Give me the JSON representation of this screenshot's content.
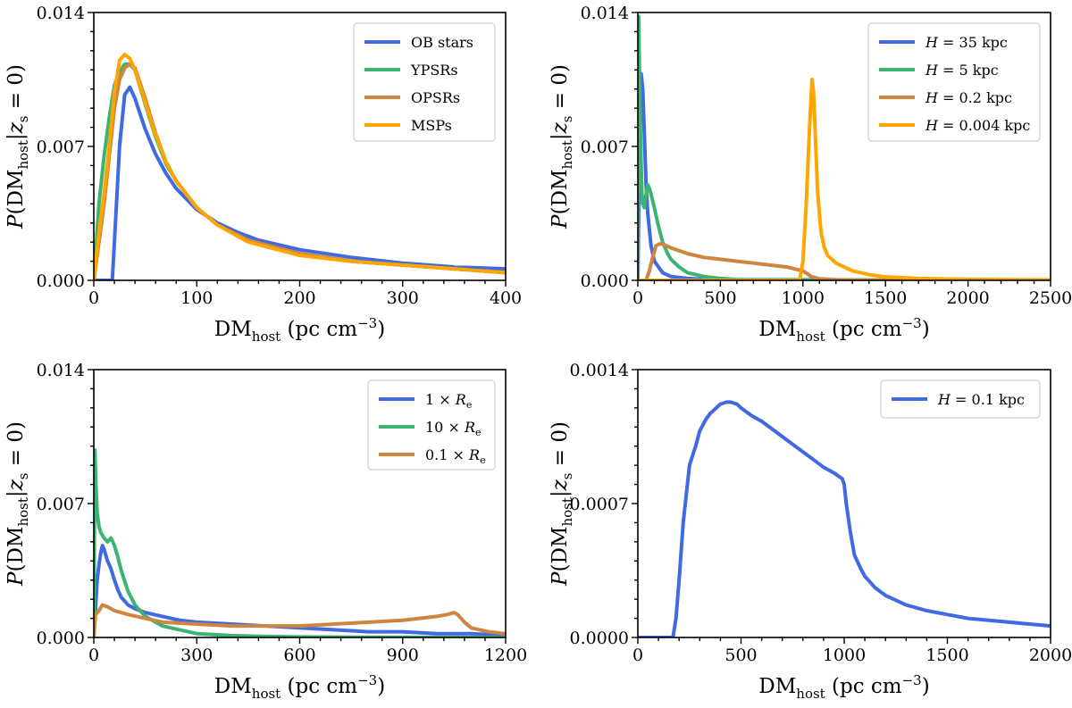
{
  "figure_xlabel": {
    "base": "DM",
    "sub": "host",
    "unit": " (pc cm",
    "exp": "−3",
    "close": ")"
  },
  "figure_ylabel": {
    "p": "P",
    "open": "(DM",
    "sub": "host",
    "bar": "|z",
    "zsub": "s",
    "tail": " = 0)"
  },
  "colors": {
    "blue": "#4169e1",
    "green": "#3cb371",
    "brown": "#cd853f",
    "orange": "#ffa500"
  },
  "chart_data": [
    {
      "type": "line",
      "panel": "top-left",
      "xlim": [
        0,
        400
      ],
      "ylim": [
        0,
        0.014
      ],
      "xticks": [
        0,
        100,
        200,
        300,
        400
      ],
      "xtick_labels": [
        "0",
        "100",
        "200",
        "300",
        "400"
      ],
      "yticks": [
        0,
        0.007,
        0.014
      ],
      "ytick_labels": [
        "0.000",
        "0.007",
        "0.014"
      ],
      "legend_position": "top-right",
      "series": [
        {
          "name": "OB stars",
          "color": "#4169e1",
          "legend_label": [
            "OB stars"
          ],
          "x": [
            0,
            18,
            20,
            25,
            30,
            35,
            40,
            50,
            60,
            70,
            80,
            100,
            120,
            140,
            160,
            200,
            250,
            300,
            350,
            400
          ],
          "y": [
            0,
            0,
            0.002,
            0.007,
            0.0097,
            0.0101,
            0.0095,
            0.0079,
            0.0066,
            0.0056,
            0.0048,
            0.0037,
            0.003,
            0.0025,
            0.0021,
            0.0016,
            0.0012,
            0.0009,
            0.0007,
            0.0006
          ]
        },
        {
          "name": "YPSRs",
          "color": "#3cb371",
          "legend_label": [
            "YPSRs"
          ],
          "x": [
            0,
            5,
            10,
            15,
            20,
            25,
            30,
            35,
            40,
            50,
            60,
            70,
            80,
            100,
            120,
            150,
            200,
            250,
            300,
            350,
            400
          ],
          "y": [
            0,
            0.004,
            0.0065,
            0.0085,
            0.0102,
            0.0109,
            0.0113,
            0.0113,
            0.011,
            0.0092,
            0.0075,
            0.0061,
            0.0052,
            0.0038,
            0.0029,
            0.0021,
            0.0014,
            0.001,
            0.0008,
            0.0006,
            0.0004
          ]
        },
        {
          "name": "OPSRs",
          "color": "#cd853f",
          "legend_label": [
            "OPSRs"
          ],
          "x": [
            0,
            5,
            10,
            15,
            20,
            25,
            30,
            35,
            40,
            50,
            60,
            70,
            80,
            100,
            120,
            150,
            200,
            250,
            300,
            350,
            400
          ],
          "y": [
            0,
            0.002,
            0.004,
            0.0065,
            0.009,
            0.0105,
            0.0111,
            0.0113,
            0.0111,
            0.0095,
            0.0077,
            0.0062,
            0.0052,
            0.0038,
            0.0029,
            0.0021,
            0.0014,
            0.001,
            0.0008,
            0.0006,
            0.0004
          ]
        },
        {
          "name": "MSPs",
          "color": "#ffa500",
          "legend_label": [
            "MSPs"
          ],
          "x": [
            0,
            5,
            10,
            15,
            20,
            25,
            30,
            35,
            40,
            50,
            60,
            70,
            80,
            100,
            120,
            150,
            200,
            250,
            300,
            350,
            400
          ],
          "y": [
            0,
            0.0025,
            0.0045,
            0.007,
            0.0098,
            0.0115,
            0.0118,
            0.0116,
            0.011,
            0.0093,
            0.0076,
            0.0062,
            0.0052,
            0.0038,
            0.0029,
            0.002,
            0.0013,
            0.001,
            0.0008,
            0.0006,
            0.0004
          ]
        }
      ]
    },
    {
      "type": "line",
      "panel": "top-right",
      "xlim": [
        0,
        2500
      ],
      "ylim": [
        0,
        0.014
      ],
      "xticks": [
        0,
        500,
        1000,
        1500,
        2000,
        2500
      ],
      "xtick_labels": [
        "0",
        "500",
        "1000",
        "1500",
        "2000",
        "2500"
      ],
      "yticks": [
        0,
        0.007,
        0.014
      ],
      "ytick_labels": [
        "0.000",
        "0.007",
        "0.014"
      ],
      "legend_position": "top-right",
      "series": [
        {
          "name": "H=35 kpc",
          "color": "#4169e1",
          "legend_label": [
            "H",
            " = 35 kpc"
          ],
          "x": [
            0,
            10,
            20,
            30,
            40,
            50,
            60,
            80,
            100,
            150,
            200,
            300,
            400,
            500,
            2500
          ],
          "y": [
            0,
            0.006,
            0.0108,
            0.01,
            0.0075,
            0.005,
            0.0035,
            0.0018,
            0.001,
            0.0004,
            0.0002,
            0.0001,
            5e-05,
            2e-05,
            0
          ]
        },
        {
          "name": "H=5 kpc",
          "color": "#3cb371",
          "legend_label": [
            "H",
            " = 5 kpc"
          ],
          "x": [
            0,
            5,
            10,
            15,
            20,
            25,
            30,
            40,
            50,
            60,
            70,
            80,
            100,
            120,
            150,
            180,
            200,
            250,
            300,
            400,
            500,
            600,
            2500
          ],
          "y": [
            0,
            0.0138,
            0.011,
            0.008,
            0.006,
            0.0045,
            0.004,
            0.0038,
            0.0045,
            0.005,
            0.0048,
            0.0045,
            0.0038,
            0.003,
            0.002,
            0.0014,
            0.0011,
            0.0007,
            0.0004,
            0.0002,
            0.0001,
            4e-05,
            0
          ]
        },
        {
          "name": "H=0.2 kpc",
          "color": "#cd853f",
          "legend_label": [
            "H",
            " = 0.2 kpc"
          ],
          "x": [
            0,
            50,
            70,
            90,
            110,
            130,
            150,
            200,
            300,
            400,
            500,
            600,
            700,
            800,
            900,
            1000,
            1050,
            1100,
            1200,
            1300,
            1500,
            2500
          ],
          "y": [
            0,
            0,
            0.0005,
            0.0012,
            0.0018,
            0.0019,
            0.0019,
            0.0017,
            0.0014,
            0.0012,
            0.0011,
            0.001,
            0.0009,
            0.0008,
            0.0007,
            0.0005,
            0.0002,
            8e-05,
            3e-05,
            1e-05,
            0,
            0
          ]
        },
        {
          "name": "H=0.004 kpc",
          "color": "#ffa500",
          "legend_label": [
            "H",
            " = 0.004 kpc"
          ],
          "x": [
            0,
            980,
            1000,
            1020,
            1040,
            1055,
            1065,
            1075,
            1090,
            1110,
            1130,
            1150,
            1200,
            1300,
            1400,
            1500,
            1700,
            2000,
            2500
          ],
          "y": [
            0,
            0,
            0.001,
            0.004,
            0.008,
            0.0105,
            0.0098,
            0.0075,
            0.0045,
            0.0025,
            0.0017,
            0.0013,
            0.0009,
            0.0005,
            0.0003,
            0.00018,
            0.0001,
            5e-05,
            3e-05
          ]
        }
      ]
    },
    {
      "type": "line",
      "panel": "bottom-left",
      "xlim": [
        0,
        1200
      ],
      "ylim": [
        0,
        0.014
      ],
      "xticks": [
        0,
        300,
        600,
        900,
        1200
      ],
      "xtick_labels": [
        "0",
        "300",
        "600",
        "900",
        "1200"
      ],
      "yticks": [
        0,
        0.007,
        0.014
      ],
      "ytick_labels": [
        "0.000",
        "0.007",
        "0.014"
      ],
      "legend_position": "top-right",
      "series": [
        {
          "name": "1×Re",
          "color": "#4169e1",
          "legend_label": [
            "1 × ",
            "R",
            "e"
          ],
          "x": [
            0,
            5,
            10,
            15,
            20,
            25,
            30,
            40,
            50,
            60,
            70,
            80,
            100,
            120,
            150,
            200,
            250,
            300,
            400,
            500,
            600,
            700,
            800,
            900,
            1000,
            1100,
            1200
          ],
          "y": [
            0,
            0.0015,
            0.003,
            0.0038,
            0.0044,
            0.0048,
            0.0046,
            0.004,
            0.0036,
            0.003,
            0.0025,
            0.0021,
            0.0017,
            0.0015,
            0.0013,
            0.0011,
            0.0009,
            0.0008,
            0.0007,
            0.0006,
            0.0005,
            0.0004,
            0.0003,
            0.0003,
            0.0002,
            0.0002,
            0.0001
          ]
        },
        {
          "name": "10×Re",
          "color": "#3cb371",
          "legend_label": [
            "10 × ",
            "R",
            "e"
          ],
          "x": [
            0,
            3,
            6,
            10,
            15,
            20,
            30,
            40,
            50,
            60,
            70,
            80,
            100,
            120,
            150,
            200,
            250,
            300,
            400,
            500,
            600,
            800,
            1200
          ],
          "y": [
            0,
            0.0098,
            0.008,
            0.0065,
            0.0058,
            0.0055,
            0.0052,
            0.005,
            0.0052,
            0.0048,
            0.0042,
            0.0035,
            0.0024,
            0.0017,
            0.0011,
            0.0006,
            0.0004,
            0.0002,
            0.0001,
            5e-05,
            3e-05,
            1e-05,
            0
          ]
        },
        {
          "name": "0.1×Re",
          "color": "#cd853f",
          "legend_label": [
            "0.1 × ",
            "R",
            "e"
          ],
          "x": [
            0,
            5,
            15,
            25,
            40,
            60,
            80,
            100,
            150,
            200,
            300,
            400,
            500,
            600,
            700,
            800,
            900,
            1000,
            1030,
            1050,
            1060,
            1080,
            1100,
            1150,
            1200
          ],
          "y": [
            0,
            0.0012,
            0.0014,
            0.0017,
            0.0016,
            0.0014,
            0.0013,
            0.0012,
            0.001,
            0.0008,
            0.0007,
            0.0006,
            0.0006,
            0.0006,
            0.0007,
            0.0008,
            0.0009,
            0.0011,
            0.0012,
            0.0013,
            0.0012,
            0.0008,
            0.0005,
            0.0003,
            0.0002
          ]
        }
      ]
    },
    {
      "type": "line",
      "panel": "bottom-right",
      "xlim": [
        0,
        2000
      ],
      "ylim": [
        0,
        0.0014
      ],
      "xticks": [
        0,
        500,
        1000,
        1500,
        2000
      ],
      "xtick_labels": [
        "0",
        "500",
        "1000",
        "1500",
        "2000"
      ],
      "yticks": [
        0,
        0.0007,
        0.0014
      ],
      "ytick_labels": [
        "0.0000",
        "0.0007",
        "0.0014"
      ],
      "legend_position": "top-right",
      "series": [
        {
          "name": "H=0.1 kpc",
          "color": "#4169e1",
          "legend_label": [
            "H",
            " = 0.1 kpc"
          ],
          "x": [
            0,
            170,
            185,
            200,
            220,
            250,
            280,
            300,
            330,
            350,
            380,
            400,
            430,
            450,
            480,
            500,
            550,
            600,
            650,
            700,
            750,
            800,
            850,
            900,
            950,
            990,
            1000,
            1010,
            1030,
            1050,
            1080,
            1100,
            1150,
            1200,
            1300,
            1400,
            1500,
            1600,
            1700,
            1800,
            1900,
            2000
          ],
          "y": [
            0,
            0,
            0.0001,
            0.0003,
            0.0006,
            0.0009,
            0.001,
            0.00108,
            0.00114,
            0.00117,
            0.0012,
            0.00122,
            0.00123,
            0.00123,
            0.00122,
            0.0012,
            0.00116,
            0.00113,
            0.00109,
            0.00105,
            0.00101,
            0.00097,
            0.00093,
            0.00089,
            0.00086,
            0.00083,
            0.0008,
            0.0007,
            0.00055,
            0.00043,
            0.00036,
            0.00032,
            0.00026,
            0.00022,
            0.00017,
            0.00014,
            0.00012,
            0.0001,
            9e-05,
            8e-05,
            7e-05,
            6e-05
          ]
        }
      ]
    }
  ]
}
